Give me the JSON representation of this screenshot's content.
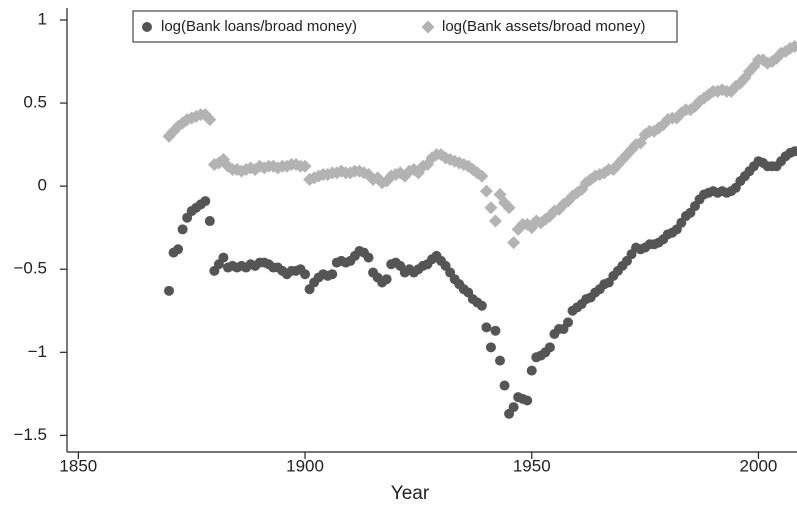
{
  "chart_data": {
    "type": "scatter",
    "x_label": "Year",
    "x": [
      1870,
      1871,
      1872,
      1873,
      1874,
      1875,
      1876,
      1877,
      1878,
      1879,
      1880,
      1881,
      1882,
      1883,
      1884,
      1885,
      1886,
      1887,
      1888,
      1889,
      1890,
      1891,
      1892,
      1893,
      1894,
      1895,
      1896,
      1897,
      1898,
      1899,
      1900,
      1901,
      1902,
      1903,
      1904,
      1905,
      1906,
      1907,
      1908,
      1909,
      1910,
      1911,
      1912,
      1913,
      1914,
      1915,
      1916,
      1917,
      1918,
      1919,
      1920,
      1921,
      1922,
      1923,
      1924,
      1925,
      1926,
      1927,
      1928,
      1929,
      1930,
      1931,
      1932,
      1933,
      1934,
      1935,
      1936,
      1937,
      1938,
      1939,
      1940,
      1941,
      1942,
      1943,
      1944,
      1945,
      1946,
      1947,
      1948,
      1949,
      1950,
      1951,
      1952,
      1953,
      1954,
      1955,
      1956,
      1957,
      1958,
      1959,
      1960,
      1961,
      1962,
      1963,
      1964,
      1965,
      1966,
      1967,
      1968,
      1969,
      1970,
      1971,
      1972,
      1973,
      1974,
      1975,
      1976,
      1977,
      1978,
      1979,
      1980,
      1981,
      1982,
      1983,
      1984,
      1985,
      1986,
      1987,
      1988,
      1989,
      1990,
      1991,
      1992,
      1993,
      1994,
      1995,
      1996,
      1997,
      1998,
      1999,
      2000,
      2001,
      2002,
      2003,
      2004,
      2005,
      2006,
      2007,
      2008
    ],
    "series": [
      {
        "name": "log(Bank loans/broad money)",
        "color": "#555555",
        "marker": "circle",
        "values": [
          -0.63,
          -0.4,
          -0.38,
          -0.26,
          -0.19,
          -0.15,
          -0.13,
          -0.11,
          -0.09,
          -0.21,
          -0.51,
          -0.47,
          -0.43,
          -0.49,
          -0.48,
          -0.49,
          -0.48,
          -0.49,
          -0.47,
          -0.48,
          -0.46,
          -0.46,
          -0.47,
          -0.49,
          -0.49,
          -0.51,
          -0.53,
          -0.51,
          -0.51,
          -0.5,
          -0.53,
          -0.62,
          -0.58,
          -0.55,
          -0.53,
          -0.54,
          -0.53,
          -0.46,
          -0.45,
          -0.46,
          -0.45,
          -0.42,
          -0.39,
          -0.4,
          -0.43,
          -0.52,
          -0.55,
          -0.58,
          -0.56,
          -0.47,
          -0.46,
          -0.48,
          -0.52,
          -0.5,
          -0.52,
          -0.5,
          -0.48,
          -0.47,
          -0.44,
          -0.42,
          -0.45,
          -0.48,
          -0.52,
          -0.56,
          -0.59,
          -0.62,
          -0.64,
          -0.68,
          -0.7,
          -0.72,
          -0.85,
          -0.97,
          -0.87,
          -1.05,
          -1.2,
          -1.37,
          -1.33,
          -1.27,
          -1.28,
          -1.29,
          -1.11,
          -1.03,
          -1.02,
          -1.0,
          -0.97,
          -0.89,
          -0.86,
          -0.86,
          -0.82,
          -0.75,
          -0.73,
          -0.71,
          -0.68,
          -0.67,
          -0.64,
          -0.62,
          -0.59,
          -0.58,
          -0.54,
          -0.51,
          -0.48,
          -0.45,
          -0.41,
          -0.37,
          -0.38,
          -0.37,
          -0.35,
          -0.35,
          -0.34,
          -0.32,
          -0.29,
          -0.28,
          -0.26,
          -0.22,
          -0.18,
          -0.16,
          -0.12,
          -0.08,
          -0.05,
          -0.04,
          -0.03,
          -0.04,
          -0.03,
          -0.04,
          -0.03,
          -0.01,
          0.03,
          0.06,
          0.09,
          0.12,
          0.15,
          0.14,
          0.12,
          0.12,
          0.12,
          0.15,
          0.18,
          0.2,
          0.21
        ]
      },
      {
        "name": "log(Bank assets/broad money)",
        "color": "#b3b3b3",
        "marker": "diamond",
        "values": [
          0.3,
          0.33,
          0.36,
          0.38,
          0.4,
          0.41,
          0.42,
          0.43,
          0.43,
          0.4,
          0.13,
          0.14,
          0.16,
          0.12,
          0.1,
          0.1,
          0.09,
          0.1,
          0.11,
          0.1,
          0.12,
          0.11,
          0.12,
          0.12,
          0.11,
          0.12,
          0.12,
          0.13,
          0.13,
          0.12,
          0.12,
          0.04,
          0.05,
          0.06,
          0.07,
          0.07,
          0.08,
          0.08,
          0.09,
          0.08,
          0.08,
          0.09,
          0.09,
          0.08,
          0.07,
          0.04,
          0.05,
          0.02,
          0.03,
          0.06,
          0.07,
          0.08,
          0.06,
          0.09,
          0.1,
          0.08,
          0.12,
          0.13,
          0.17,
          0.19,
          0.19,
          0.17,
          0.16,
          0.15,
          0.14,
          0.13,
          0.12,
          0.1,
          0.08,
          0.06,
          -0.03,
          -0.13,
          -0.21,
          -0.05,
          -0.1,
          -0.13,
          -0.34,
          -0.26,
          -0.23,
          -0.23,
          -0.25,
          -0.21,
          -0.22,
          -0.2,
          -0.18,
          -0.15,
          -0.14,
          -0.11,
          -0.09,
          -0.06,
          -0.04,
          -0.02,
          0.02,
          0.04,
          0.06,
          0.07,
          0.08,
          0.1,
          0.1,
          0.13,
          0.16,
          0.19,
          0.22,
          0.25,
          0.26,
          0.31,
          0.33,
          0.33,
          0.35,
          0.37,
          0.4,
          0.41,
          0.41,
          0.44,
          0.46,
          0.46,
          0.48,
          0.51,
          0.53,
          0.55,
          0.57,
          0.57,
          0.58,
          0.57,
          0.57,
          0.6,
          0.62,
          0.65,
          0.69,
          0.72,
          0.76,
          0.76,
          0.74,
          0.75,
          0.77,
          0.8,
          0.81,
          0.83,
          0.84
        ]
      }
    ],
    "xlim": [
      1847.5,
      2008.5
    ],
    "xticks": [
      1850,
      1900,
      1950,
      2000
    ],
    "ylim": [
      -1.6,
      1.06
    ],
    "yticks": [
      {
        "value": -1.5,
        "label": "−1.5"
      },
      {
        "value": -1,
        "label": "−1"
      },
      {
        "value": -0.5,
        "label": "−0.5"
      },
      0,
      0.5,
      1
    ],
    "legend": "top",
    "grid": false
  }
}
